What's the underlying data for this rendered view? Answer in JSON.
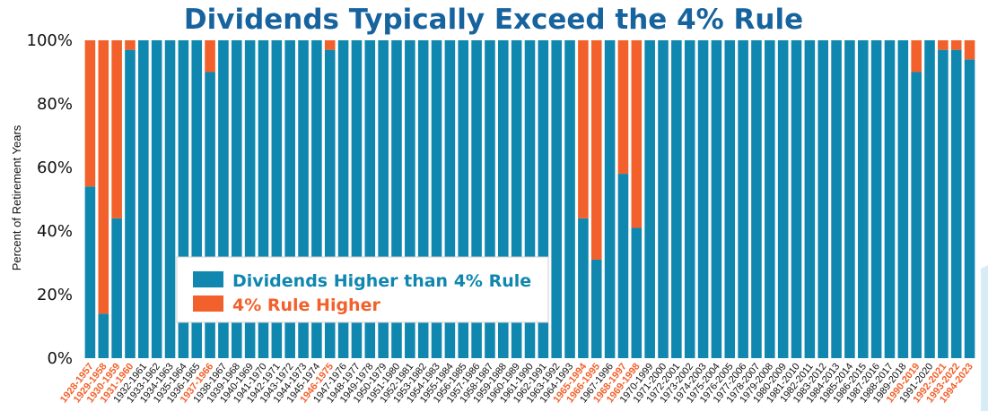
{
  "chart_data": {
    "type": "bar",
    "stacked": true,
    "title": "Dividends Typically Exceed the 4% Rule",
    "ylabel": "Percent of Retirement Years",
    "xlabel": "",
    "ylim": [
      0,
      100
    ],
    "yticks": [
      "0%",
      "20%",
      "40%",
      "60%",
      "80%",
      "100%"
    ],
    "grid": false,
    "legend_position": "lower-left",
    "colors": {
      "dividends": "#0f87ae",
      "rule": "#f2612b",
      "highlight_label": "#f2612b",
      "normal_label": "#111111",
      "title": "#17639e"
    },
    "categories": [
      "1928-1957",
      "1929-1958",
      "1930-1959",
      "1931-1960",
      "1932-1961",
      "1933-1962",
      "1934-1963",
      "1935-1964",
      "1936-1965",
      "1937-1966",
      "1938-1967",
      "1939-1968",
      "1940-1969",
      "1941-1970",
      "1942-1971",
      "1943-1972",
      "1944-1973",
      "1945-1974",
      "1946-1975",
      "1947-1976",
      "1948-1977",
      "1949-1978",
      "1950-1979",
      "1951-1980",
      "1952-1981",
      "1953-1982",
      "1954-1983",
      "1955-1984",
      "1956-1985",
      "1957-1986",
      "1958-1987",
      "1959-1988",
      "1960-1989",
      "1961-1990",
      "1962-1991",
      "1963-1992",
      "1964-1993",
      "1965-1994",
      "1966-1995",
      "1967-1996",
      "1968-1997",
      "1969-1998",
      "1970-1999",
      "1971-2000",
      "1972-2001",
      "1973-2002",
      "1974-2003",
      "1975-2004",
      "1976-2005",
      "1977-2006",
      "1978-2007",
      "1979-2008",
      "1980-2009",
      "1981-2010",
      "1982-2011",
      "1983-2012",
      "1984-2013",
      "1985-2014",
      "1986-2015",
      "1987-2016",
      "1988-2017",
      "1989-2018",
      "1990-2019",
      "1991-2020",
      "1992-2021",
      "1993-2022",
      "1994-2023"
    ],
    "highlighted_categories": [
      "1928-1957",
      "1929-1958",
      "1930-1959",
      "1931-1960",
      "1937-1966",
      "1946-1975",
      "1965-1994",
      "1966-1995",
      "1968-1997",
      "1969-1998",
      "1990-2019",
      "1992-2021",
      "1993-2022",
      "1994-2023"
    ],
    "series": [
      {
        "name": "Dividends Higher than 4% Rule",
        "values": [
          54,
          14,
          44,
          97,
          100,
          100,
          100,
          100,
          100,
          90,
          100,
          100,
          100,
          100,
          100,
          100,
          100,
          100,
          97,
          100,
          100,
          100,
          100,
          100,
          100,
          100,
          100,
          100,
          100,
          100,
          100,
          100,
          100,
          100,
          100,
          100,
          100,
          44,
          31,
          100,
          58,
          41,
          100,
          100,
          100,
          100,
          100,
          100,
          100,
          100,
          100,
          100,
          100,
          100,
          100,
          100,
          100,
          100,
          100,
          100,
          100,
          100,
          90,
          100,
          97,
          97,
          94
        ]
      },
      {
        "name": "4% Rule Higher",
        "values": [
          46,
          86,
          56,
          3,
          0,
          0,
          0,
          0,
          0,
          10,
          0,
          0,
          0,
          0,
          0,
          0,
          0,
          0,
          3,
          0,
          0,
          0,
          0,
          0,
          0,
          0,
          0,
          0,
          0,
          0,
          0,
          0,
          0,
          0,
          0,
          0,
          0,
          56,
          69,
          0,
          42,
          59,
          0,
          0,
          0,
          0,
          0,
          0,
          0,
          0,
          0,
          0,
          0,
          0,
          0,
          0,
          0,
          0,
          0,
          0,
          0,
          0,
          10,
          0,
          3,
          3,
          6
        ]
      }
    ]
  }
}
